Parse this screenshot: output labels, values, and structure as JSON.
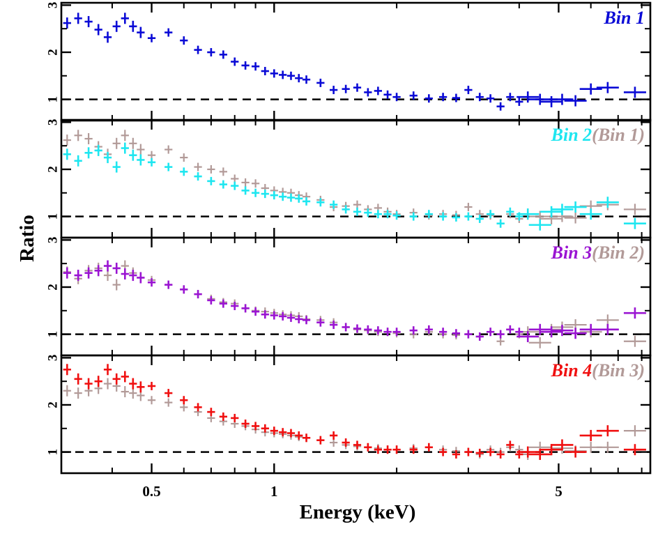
{
  "chart_data": {
    "type": "scatter",
    "xlabel": "Energy (keV)",
    "ylabel": "Ratio",
    "xscale": "log",
    "xlim": [
      0.3,
      8.4
    ],
    "ylim": [
      0.55,
      3.05
    ],
    "x_tick_labels": [
      {
        "value": 0.5,
        "label": "0.5"
      },
      {
        "value": 1,
        "label": "1"
      },
      {
        "value": 5,
        "label": "5"
      }
    ],
    "y_tick_labels": [
      "1",
      "2",
      "3"
    ],
    "reference_line": {
      "y": 1,
      "style": "dashed",
      "color": "#000000"
    },
    "colors": {
      "bin1": "#0a0ad6",
      "bin2": "#1ee6f0",
      "bin3": "#9a14d2",
      "bin4": "#f01010",
      "previous": "#b29a98"
    },
    "panels": [
      {
        "label": "Bin 1",
        "label_color": "#0a0ad6",
        "comparison_label": "",
        "series": [
          {
            "name": "Bin 1",
            "color": "#0a0ad6",
            "x": [
              0.31,
              0.33,
              0.35,
              0.37,
              0.39,
              0.41,
              0.43,
              0.45,
              0.47,
              0.5,
              0.55,
              0.6,
              0.65,
              0.7,
              0.75,
              0.8,
              0.85,
              0.9,
              0.95,
              1.0,
              1.05,
              1.1,
              1.15,
              1.2,
              1.3,
              1.4,
              1.5,
              1.6,
              1.7,
              1.8,
              1.9,
              2.0,
              2.2,
              2.4,
              2.6,
              2.8,
              3.0,
              3.2,
              3.4,
              3.6,
              3.8,
              4.0,
              4.2,
              4.5,
              4.8,
              5.1,
              5.5,
              6.0,
              6.6,
              7.7
            ],
            "y": [
              2.62,
              2.72,
              2.65,
              2.48,
              2.32,
              2.55,
              2.72,
              2.55,
              2.42,
              2.3,
              2.42,
              2.25,
              2.05,
              2.0,
              1.95,
              1.8,
              1.72,
              1.7,
              1.6,
              1.55,
              1.52,
              1.5,
              1.45,
              1.42,
              1.35,
              1.2,
              1.22,
              1.25,
              1.15,
              1.18,
              1.1,
              1.05,
              1.08,
              1.02,
              1.05,
              1.03,
              1.2,
              1.05,
              1.02,
              0.85,
              1.05,
              0.95,
              1.05,
              1.0,
              0.95,
              1.0,
              0.97,
              1.22,
              1.25,
              1.15
            ]
          }
        ]
      },
      {
        "label": "Bin 2",
        "label_color": "#1ee6f0",
        "comparison_label": "(Bin 1)",
        "series": [
          {
            "name": "Bin 1",
            "color": "#b29a98",
            "x": [
              0.31,
              0.33,
              0.35,
              0.37,
              0.39,
              0.41,
              0.43,
              0.45,
              0.47,
              0.5,
              0.55,
              0.6,
              0.65,
              0.7,
              0.75,
              0.8,
              0.85,
              0.9,
              0.95,
              1.0,
              1.05,
              1.1,
              1.15,
              1.2,
              1.3,
              1.4,
              1.5,
              1.6,
              1.7,
              1.8,
              1.9,
              2.0,
              2.2,
              2.4,
              2.6,
              2.8,
              3.0,
              3.2,
              3.4,
              3.6,
              3.8,
              4.0,
              4.2,
              4.5,
              4.8,
              5.1,
              5.5,
              6.0,
              6.6,
              7.7
            ],
            "y": [
              2.62,
              2.72,
              2.65,
              2.48,
              2.32,
              2.55,
              2.72,
              2.55,
              2.42,
              2.3,
              2.42,
              2.25,
              2.05,
              2.0,
              1.95,
              1.8,
              1.72,
              1.7,
              1.6,
              1.55,
              1.52,
              1.5,
              1.45,
              1.42,
              1.35,
              1.2,
              1.22,
              1.25,
              1.15,
              1.18,
              1.1,
              1.05,
              1.08,
              1.02,
              1.05,
              1.03,
              1.2,
              1.05,
              1.02,
              0.85,
              1.05,
              0.95,
              1.05,
              1.0,
              0.95,
              1.0,
              0.97,
              1.22,
              1.25,
              1.15
            ]
          },
          {
            "name": "Bin 2",
            "color": "#1ee6f0",
            "x": [
              0.31,
              0.33,
              0.35,
              0.37,
              0.39,
              0.41,
              0.43,
              0.45,
              0.47,
              0.5,
              0.55,
              0.6,
              0.65,
              0.7,
              0.75,
              0.8,
              0.85,
              0.9,
              0.95,
              1.0,
              1.05,
              1.1,
              1.15,
              1.2,
              1.3,
              1.4,
              1.5,
              1.6,
              1.7,
              1.8,
              1.9,
              2.0,
              2.2,
              2.4,
              2.6,
              2.8,
              3.0,
              3.2,
              3.4,
              3.6,
              3.8,
              4.0,
              4.2,
              4.5,
              4.8,
              5.1,
              5.5,
              6.0,
              6.6,
              7.7
            ],
            "y": [
              2.32,
              2.18,
              2.35,
              2.4,
              2.25,
              2.05,
              2.45,
              2.3,
              2.2,
              2.15,
              2.05,
              1.95,
              1.85,
              1.75,
              1.68,
              1.65,
              1.55,
              1.5,
              1.48,
              1.45,
              1.42,
              1.4,
              1.38,
              1.32,
              1.3,
              1.25,
              1.15,
              1.1,
              1.08,
              1.05,
              1.05,
              1.02,
              1.0,
              1.05,
              1.0,
              0.98,
              1.0,
              0.95,
              1.05,
              0.85,
              1.1,
              1.0,
              1.05,
              0.82,
              1.1,
              1.15,
              1.2,
              1.05,
              1.3,
              0.85
            ]
          }
        ]
      },
      {
        "label": "Bin 3",
        "label_color": "#9a14d2",
        "comparison_label": "(Bin 2)",
        "series": [
          {
            "name": "Bin 2",
            "color": "#b29a98",
            "x": [
              0.31,
              0.33,
              0.35,
              0.37,
              0.39,
              0.41,
              0.43,
              0.45,
              0.47,
              0.5,
              0.55,
              0.6,
              0.65,
              0.7,
              0.75,
              0.8,
              0.85,
              0.9,
              0.95,
              1.0,
              1.05,
              1.1,
              1.15,
              1.2,
              1.3,
              1.4,
              1.5,
              1.6,
              1.7,
              1.8,
              1.9,
              2.0,
              2.2,
              2.4,
              2.6,
              2.8,
              3.0,
              3.2,
              3.4,
              3.6,
              3.8,
              4.0,
              4.2,
              4.5,
              4.8,
              5.1,
              5.5,
              6.0,
              6.6,
              7.7
            ],
            "y": [
              2.32,
              2.18,
              2.35,
              2.4,
              2.25,
              2.05,
              2.45,
              2.3,
              2.2,
              2.15,
              2.05,
              1.95,
              1.85,
              1.75,
              1.68,
              1.65,
              1.55,
              1.5,
              1.48,
              1.45,
              1.42,
              1.4,
              1.38,
              1.32,
              1.3,
              1.25,
              1.15,
              1.1,
              1.08,
              1.05,
              1.05,
              1.02,
              1.0,
              1.05,
              1.0,
              0.98,
              1.0,
              0.95,
              1.05,
              0.85,
              1.1,
              1.0,
              1.05,
              0.82,
              1.1,
              1.15,
              1.2,
              1.05,
              1.3,
              0.85
            ]
          },
          {
            "name": "Bin 3",
            "color": "#9a14d2",
            "x": [
              0.31,
              0.33,
              0.35,
              0.37,
              0.39,
              0.41,
              0.43,
              0.45,
              0.47,
              0.5,
              0.55,
              0.6,
              0.65,
              0.7,
              0.75,
              0.8,
              0.85,
              0.9,
              0.95,
              1.0,
              1.05,
              1.1,
              1.15,
              1.2,
              1.3,
              1.4,
              1.5,
              1.6,
              1.7,
              1.8,
              1.9,
              2.0,
              2.2,
              2.4,
              2.6,
              2.8,
              3.0,
              3.2,
              3.4,
              3.6,
              3.8,
              4.0,
              4.2,
              4.5,
              4.8,
              5.1,
              5.5,
              6.0,
              6.6,
              7.7
            ],
            "y": [
              2.3,
              2.25,
              2.3,
              2.35,
              2.45,
              2.4,
              2.28,
              2.25,
              2.2,
              2.1,
              2.05,
              1.95,
              1.85,
              1.72,
              1.65,
              1.6,
              1.55,
              1.48,
              1.42,
              1.4,
              1.38,
              1.35,
              1.32,
              1.3,
              1.25,
              1.2,
              1.15,
              1.12,
              1.1,
              1.08,
              1.05,
              1.05,
              1.08,
              1.1,
              1.05,
              1.02,
              1.0,
              0.95,
              1.05,
              1.0,
              1.1,
              1.05,
              0.95,
              1.1,
              1.05,
              1.08,
              1.02,
              1.1,
              1.1,
              1.45
            ]
          }
        ]
      },
      {
        "label": "Bin 4",
        "label_color": "#f01010",
        "comparison_label": "(Bin 3)",
        "series": [
          {
            "name": "Bin 3",
            "color": "#b29a98",
            "x": [
              0.31,
              0.33,
              0.35,
              0.37,
              0.39,
              0.41,
              0.43,
              0.45,
              0.47,
              0.5,
              0.55,
              0.6,
              0.65,
              0.7,
              0.75,
              0.8,
              0.85,
              0.9,
              0.95,
              1.0,
              1.05,
              1.1,
              1.15,
              1.2,
              1.3,
              1.4,
              1.5,
              1.6,
              1.7,
              1.8,
              1.9,
              2.0,
              2.2,
              2.4,
              2.6,
              2.8,
              3.0,
              3.2,
              3.4,
              3.6,
              3.8,
              4.0,
              4.2,
              4.5,
              4.8,
              5.1,
              5.5,
              6.0,
              6.6,
              7.7
            ],
            "y": [
              2.3,
              2.25,
              2.3,
              2.35,
              2.45,
              2.4,
              2.28,
              2.25,
              2.2,
              2.1,
              2.05,
              1.95,
              1.85,
              1.72,
              1.65,
              1.6,
              1.55,
              1.48,
              1.42,
              1.4,
              1.38,
              1.35,
              1.32,
              1.3,
              1.25,
              1.2,
              1.15,
              1.12,
              1.1,
              1.08,
              1.05,
              1.05,
              1.08,
              1.1,
              1.05,
              1.02,
              1.0,
              0.95,
              1.05,
              1.0,
              1.1,
              1.05,
              0.95,
              1.1,
              1.05,
              1.08,
              1.02,
              1.1,
              1.1,
              1.45
            ]
          },
          {
            "name": "Bin 4",
            "color": "#f01010",
            "x": [
              0.31,
              0.33,
              0.35,
              0.37,
              0.39,
              0.41,
              0.43,
              0.45,
              0.47,
              0.5,
              0.55,
              0.6,
              0.65,
              0.7,
              0.75,
              0.8,
              0.85,
              0.9,
              0.95,
              1.0,
              1.05,
              1.1,
              1.15,
              1.2,
              1.3,
              1.4,
              1.5,
              1.6,
              1.7,
              1.8,
              1.9,
              2.0,
              2.2,
              2.4,
              2.6,
              2.8,
              3.0,
              3.2,
              3.4,
              3.6,
              3.8,
              4.0,
              4.2,
              4.5,
              4.8,
              5.1,
              5.5,
              6.0,
              6.6,
              7.7
            ],
            "y": [
              2.75,
              2.55,
              2.45,
              2.5,
              2.75,
              2.55,
              2.6,
              2.45,
              2.38,
              2.4,
              2.25,
              2.1,
              1.95,
              1.85,
              1.75,
              1.72,
              1.6,
              1.55,
              1.5,
              1.45,
              1.42,
              1.4,
              1.35,
              1.3,
              1.25,
              1.35,
              1.2,
              1.15,
              1.1,
              1.05,
              1.05,
              1.05,
              1.05,
              1.1,
              1.0,
              0.95,
              1.0,
              0.98,
              1.0,
              0.95,
              1.15,
              0.95,
              1.0,
              0.95,
              1.05,
              1.15,
              1.0,
              1.35,
              1.45,
              1.05
            ]
          }
        ]
      }
    ]
  }
}
